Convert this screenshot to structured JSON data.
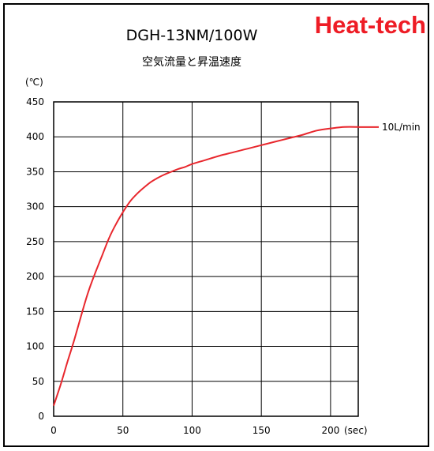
{
  "brand": {
    "text": "Heat-tech",
    "color": "#ee1c25"
  },
  "chart_data": {
    "type": "line",
    "title": "DGH-13NM/100W",
    "subtitle": "空気流量と昇温速度",
    "xlabel": "",
    "ylabel": "",
    "y_unit": "(℃)",
    "x_unit": "(sec)",
    "xlim": [
      0,
      220
    ],
    "ylim": [
      0,
      450
    ],
    "x_ticks": [
      0,
      50,
      100,
      150,
      200
    ],
    "y_ticks": [
      0,
      50,
      100,
      150,
      200,
      250,
      300,
      350,
      400,
      450
    ],
    "grid": true,
    "series": [
      {
        "name": "10L/min",
        "color": "#e8272d",
        "x": [
          0,
          5,
          10,
          15,
          20,
          25,
          30,
          35,
          40,
          45,
          50,
          55,
          60,
          65,
          70,
          75,
          80,
          85,
          90,
          95,
          100,
          110,
          120,
          130,
          140,
          150,
          160,
          170,
          180,
          190,
          200,
          210,
          220
        ],
        "y": [
          15,
          45,
          78,
          110,
          145,
          178,
          205,
          230,
          255,
          275,
          292,
          307,
          318,
          327,
          335,
          341,
          346,
          350,
          354,
          357,
          361,
          367,
          373,
          378,
          383,
          388,
          393,
          398,
          403,
          409,
          412,
          414,
          414
        ]
      }
    ]
  }
}
